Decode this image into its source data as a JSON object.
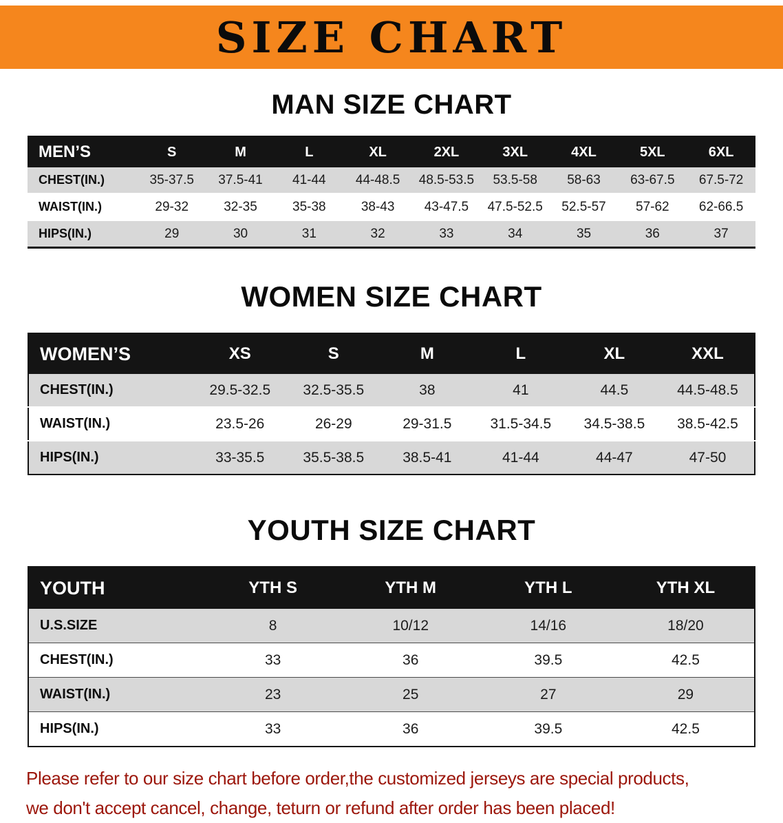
{
  "theme": {
    "banner_bg": "#f5861d",
    "banner_text": "#0b0b0b",
    "header_bg": "#141414",
    "header_text": "#ffffff",
    "row_shade": "#d8d8d8",
    "note_text": "#9c170c"
  },
  "banner": {
    "title": "SIZE CHART"
  },
  "sections": [
    {
      "id": "men",
      "heading": "MAN SIZE CHART",
      "table": {
        "header": [
          "MEN’S",
          "S",
          "M",
          "L",
          "XL",
          "2XL",
          "3XL",
          "4XL",
          "5XL",
          "6XL"
        ],
        "rows": [
          {
            "label": "CHEST(IN.)",
            "values": [
              "35-37.5",
              "37.5-41",
              "41-44",
              "44-48.5",
              "48.5-53.5",
              "53.5-58",
              "58-63",
              "63-67.5",
              "67.5-72"
            ]
          },
          {
            "label": "WAIST(IN.)",
            "values": [
              "29-32",
              "32-35",
              "35-38",
              "38-43",
              "43-47.5",
              "47.5-52.5",
              "52.5-57",
              "57-62",
              "62-66.5"
            ]
          },
          {
            "label": "HIPS(IN.)",
            "values": [
              "29",
              "30",
              "31",
              "32",
              "33",
              "34",
              "35",
              "36",
              "37"
            ]
          }
        ]
      }
    },
    {
      "id": "women",
      "heading": "WOMEN SIZE CHART",
      "table": {
        "header": [
          "WOMEN’S",
          "XS",
          "S",
          "M",
          "L",
          "XL",
          "XXL"
        ],
        "rows": [
          {
            "label": "CHEST(IN.)",
            "values": [
              "29.5-32.5",
              "32.5-35.5",
              "38",
              "41",
              "44.5",
              "44.5-48.5"
            ]
          },
          {
            "label": "WAIST(IN.)",
            "values": [
              "23.5-26",
              "26-29",
              "29-31.5",
              "31.5-34.5",
              "34.5-38.5",
              "38.5-42.5"
            ]
          },
          {
            "label": "HIPS(IN.)",
            "values": [
              "33-35.5",
              "35.5-38.5",
              "38.5-41",
              "41-44",
              "44-47",
              "47-50"
            ]
          }
        ]
      }
    },
    {
      "id": "youth",
      "heading": "YOUTH SIZE CHART",
      "table": {
        "header": [
          "YOUTH",
          "YTH S",
          "YTH M",
          "YTH L",
          "YTH XL"
        ],
        "rows": [
          {
            "label": "U.S.SIZE",
            "values": [
              "8",
              "10/12",
              "14/16",
              "18/20"
            ]
          },
          {
            "label": "CHEST(IN.)",
            "values": [
              "33",
              "36",
              "39.5",
              "42.5"
            ]
          },
          {
            "label": "WAIST(IN.)",
            "values": [
              "23",
              "25",
              "27",
              "29"
            ]
          },
          {
            "label": "HIPS(IN.)",
            "values": [
              "33",
              "36",
              "39.5",
              "42.5"
            ]
          }
        ]
      }
    }
  ],
  "footer": {
    "lines": [
      "Please refer to our size chart before order,the customized jerseys are special products,",
      "we don't accept cancel, change, teturn or refund after order has been placed!"
    ]
  }
}
